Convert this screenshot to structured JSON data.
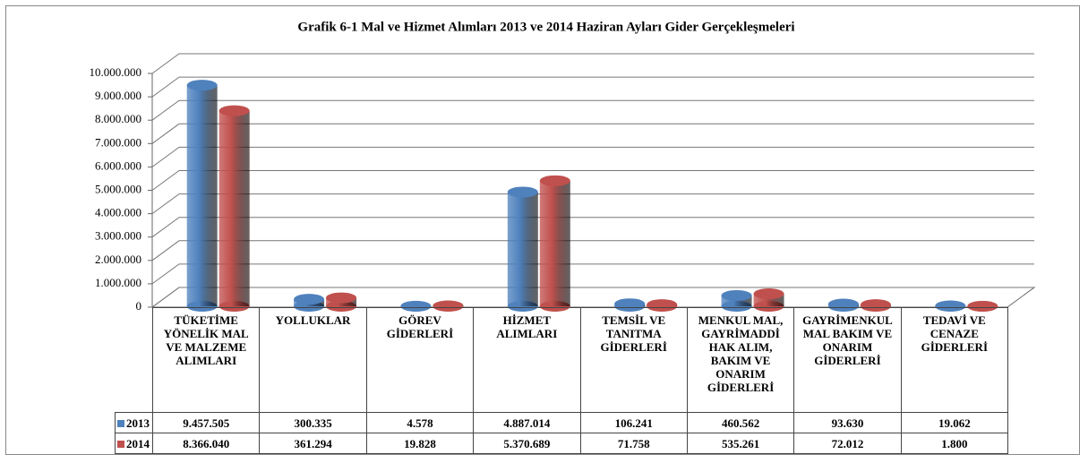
{
  "chart_data": {
    "type": "bar",
    "title": "Grafik 6-1 Mal ve Hizmet Alımları  2013 ve 2014 Haziran Ayları Gider Gerçekleşmeleri",
    "categories": [
      "TÜKETİME YÖNELİK MAL VE MALZEME ALIMLARI",
      "YOLLUKLAR",
      "GÖREV GİDERLERİ",
      "HİZMET ALIMLARI",
      "TEMSİL VE TANITMA GİDERLERİ",
      "MENKUL MAL, GAYRİMADDİ HAK ALIM, BAKIM VE ONARIM GİDERLERİ",
      "GAYRİMENKUL MAL BAKIM VE ONARIM GİDERLERİ",
      "TEDAVİ VE CENAZE GİDERLERİ"
    ],
    "series": [
      {
        "name": "2013",
        "color": "#4f81bd",
        "values": [
          9457505,
          300335,
          4578,
          4887014,
          106241,
          460562,
          93630,
          19062
        ],
        "value_labels": [
          "9.457.505",
          "300.335",
          "4.578",
          "4.887.014",
          "106.241",
          "460.562",
          "93.630",
          "19.062"
        ]
      },
      {
        "name": "2014",
        "color": "#c0504d",
        "values": [
          8366040,
          361294,
          19828,
          5370689,
          71758,
          535261,
          72012,
          1800
        ],
        "value_labels": [
          "8.366.040",
          "361.294",
          "19.828",
          "5.370.689",
          "71.758",
          "535.261",
          "72.012",
          "1.800"
        ]
      }
    ],
    "ylim": [
      0,
      10000000
    ],
    "yticks": [
      0,
      {
        "value": 1000000,
        "label": "1.000.000"
      },
      {
        "value": 2000000,
        "label": "2.000.000"
      },
      {
        "value": 3000000,
        "label": "3.000.000"
      },
      {
        "value": 4000000,
        "label": "4.000.000"
      },
      {
        "value": 5000000,
        "label": "5.000.000"
      },
      {
        "value": 6000000,
        "label": "6.000.000"
      },
      {
        "value": 7000000,
        "label": "7.000.000"
      },
      {
        "value": 8000000,
        "label": "8.000.000"
      },
      {
        "value": 9000000,
        "label": "9.000.000"
      },
      {
        "value": 10000000,
        "label": "10.000.000"
      }
    ],
    "grid": true
  }
}
